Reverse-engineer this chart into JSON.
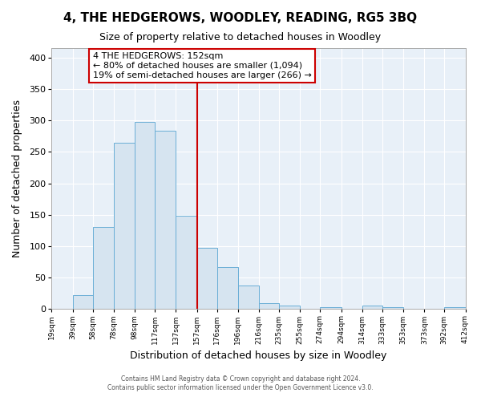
{
  "title": "4, THE HEDGEROWS, WOODLEY, READING, RG5 3BQ",
  "subtitle": "Size of property relative to detached houses in Woodley",
  "xlabel": "Distribution of detached houses by size in Woodley",
  "ylabel": "Number of detached properties",
  "bar_edges": [
    19,
    39,
    58,
    78,
    98,
    117,
    137,
    157,
    176,
    196,
    216,
    235,
    255,
    274,
    294,
    314,
    333,
    353,
    373,
    392,
    412
  ],
  "bar_heights": [
    0,
    22,
    130,
    265,
    298,
    283,
    148,
    98,
    67,
    38,
    9,
    5,
    0,
    3,
    0,
    5,
    3,
    0,
    0,
    3
  ],
  "tick_labels": [
    "19sqm",
    "39sqm",
    "58sqm",
    "78sqm",
    "98sqm",
    "117sqm",
    "137sqm",
    "157sqm",
    "176sqm",
    "196sqm",
    "216sqm",
    "235sqm",
    "255sqm",
    "274sqm",
    "294sqm",
    "314sqm",
    "333sqm",
    "353sqm",
    "373sqm",
    "392sqm",
    "412sqm"
  ],
  "bar_color": "#d6e4f0",
  "bar_edge_color": "#6aaed6",
  "vline_x": 157,
  "vline_color": "#cc0000",
  "annotation_title": "4 THE HEDGEROWS: 152sqm",
  "annotation_line1": "← 80% of detached houses are smaller (1,094)",
  "annotation_line2": "19% of semi-detached houses are larger (266) →",
  "annotation_box_color": "#ffffff",
  "annotation_box_edge": "#cc0000",
  "ylim": [
    0,
    415
  ],
  "yticks": [
    0,
    50,
    100,
    150,
    200,
    250,
    300,
    350,
    400
  ],
  "footer1": "Contains HM Land Registry data © Crown copyright and database right 2024.",
  "footer2": "Contains public sector information licensed under the Open Government Licence v3.0.",
  "background_color": "#ffffff",
  "plot_bg_color": "#e8f0f8",
  "grid_color": "#ffffff",
  "title_fontsize": 11,
  "subtitle_fontsize": 9
}
